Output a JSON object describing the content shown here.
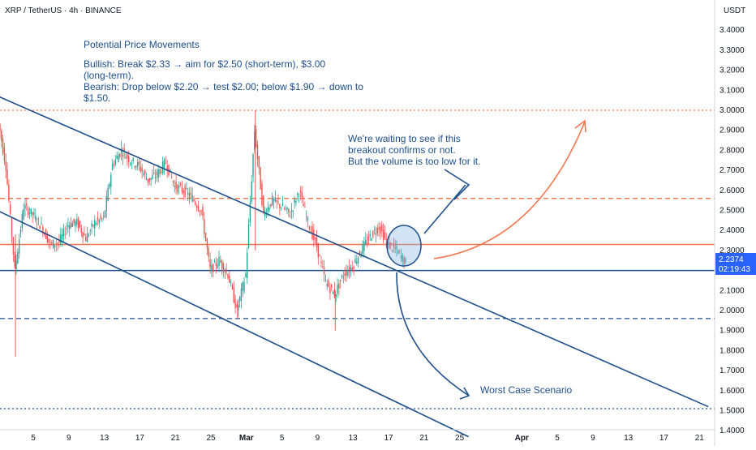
{
  "header": {
    "symbol": "XRP / TetherUS · 4h · BINANCE",
    "quote": "USDT"
  },
  "price_badge": {
    "price": "2.2374",
    "countdown": "02:19:43"
  },
  "notes": {
    "title": "Potential Price Movements",
    "bullish_1": "Bullish: Break $2.33 → aim for $2.50 (short-term), $3.00",
    "bullish_2": "(long-term).",
    "bearish_1": "Bearish: Drop below $2.20 → test $2.00; below $1.90 → down to",
    "bearish_2": "$1.50.",
    "waiting_1": "We're waiting to see if this",
    "waiting_2": "breakout confirms or not.",
    "waiting_3": "But the volume is too low for it.",
    "worst_case": "Worst Case Scenario"
  },
  "colors": {
    "up": "#26a69a",
    "down": "#ef5350",
    "line_blue": "#1e4f8c",
    "orange": "#f4764e",
    "badge": "#2962ff",
    "grid": "#e0e3eb"
  },
  "chart_data": {
    "type": "candlestick",
    "title": "XRP / TetherUS · 4h · BINANCE",
    "ylabel": "USDT",
    "ylim": [
      1.37,
      3.56
    ],
    "y_ticks": [
      "3.4000",
      "3.3000",
      "3.2000",
      "3.1000",
      "3.0000",
      "2.9000",
      "2.8000",
      "2.7000",
      "2.6000",
      "2.5000",
      "2.4000",
      "2.3000",
      "2.2000",
      "2.1000",
      "2.0000",
      "1.9000",
      "1.8000",
      "1.7000",
      "1.6000",
      "1.5000",
      "1.4000"
    ],
    "x_ticks": [
      "5",
      "9",
      "13",
      "17",
      "21",
      "25",
      "Mar",
      "5",
      "9",
      "13",
      "17",
      "21",
      "25",
      "Apr",
      "5",
      "9",
      "13",
      "17",
      "21"
    ],
    "current_price": 2.2374,
    "horizontal_levels": [
      {
        "name": "resistance-3.00",
        "price": 3.0,
        "style": "dotted",
        "color": "orange"
      },
      {
        "name": "resistance-2.56",
        "price": 2.56,
        "style": "dashed",
        "color": "orange"
      },
      {
        "name": "resistance-2.33",
        "price": 2.33,
        "style": "solid",
        "color": "orange"
      },
      {
        "name": "support-2.20",
        "price": 2.2,
        "style": "solid",
        "color": "blue"
      },
      {
        "name": "support-1.96",
        "price": 1.96,
        "style": "dashed",
        "color": "blue"
      },
      {
        "name": "support-1.51",
        "price": 1.51,
        "style": "dotted",
        "color": "blue"
      }
    ],
    "price_path": [
      {
        "date": "Feb 1",
        "price": 2.98
      },
      {
        "date": "Feb 2",
        "price": 2.72
      },
      {
        "date": "Feb 3",
        "price": 2.2
      },
      {
        "date": "Feb 4",
        "price": 2.52
      },
      {
        "date": "Feb 5",
        "price": 2.48
      },
      {
        "date": "Feb 6",
        "price": 2.42
      },
      {
        "date": "Feb 7",
        "price": 2.33
      },
      {
        "date": "Feb 8",
        "price": 2.34
      },
      {
        "date": "Feb 9",
        "price": 2.43
      },
      {
        "date": "Feb 10",
        "price": 2.44
      },
      {
        "date": "Feb 11",
        "price": 2.36
      },
      {
        "date": "Feb 12",
        "price": 2.44
      },
      {
        "date": "Feb 13",
        "price": 2.46
      },
      {
        "date": "Feb 14",
        "price": 2.73
      },
      {
        "date": "Feb 15",
        "price": 2.8
      },
      {
        "date": "Feb 16",
        "price": 2.75
      },
      {
        "date": "Feb 17",
        "price": 2.72
      },
      {
        "date": "Feb 18",
        "price": 2.65
      },
      {
        "date": "Feb 19",
        "price": 2.68
      },
      {
        "date": "Feb 20",
        "price": 2.74
      },
      {
        "date": "Feb 21",
        "price": 2.62
      },
      {
        "date": "Feb 22",
        "price": 2.6
      },
      {
        "date": "Feb 23",
        "price": 2.56
      },
      {
        "date": "Feb 24",
        "price": 2.5
      },
      {
        "date": "Feb 25",
        "price": 2.2
      },
      {
        "date": "Feb 26",
        "price": 2.25
      },
      {
        "date": "Feb 27",
        "price": 2.18
      },
      {
        "date": "Feb 28",
        "price": 2.0
      },
      {
        "date": "Mar 1",
        "price": 2.18
      },
      {
        "date": "Mar 2",
        "price": 2.9
      },
      {
        "date": "Mar 3",
        "price": 2.48
      },
      {
        "date": "Mar 4",
        "price": 2.55
      },
      {
        "date": "Mar 5",
        "price": 2.52
      },
      {
        "date": "Mar 6",
        "price": 2.48
      },
      {
        "date": "Mar 7",
        "price": 2.6
      },
      {
        "date": "Mar 8",
        "price": 2.44
      },
      {
        "date": "Mar 9",
        "price": 2.32
      },
      {
        "date": "Mar 10",
        "price": 2.14
      },
      {
        "date": "Mar 11",
        "price": 2.08
      },
      {
        "date": "Mar 12",
        "price": 2.18
      },
      {
        "date": "Mar 13",
        "price": 2.22
      },
      {
        "date": "Mar 14",
        "price": 2.3
      },
      {
        "date": "Mar 15",
        "price": 2.37
      },
      {
        "date": "Mar 16",
        "price": 2.42
      },
      {
        "date": "Mar 17",
        "price": 2.33
      },
      {
        "date": "Mar 18",
        "price": 2.3
      },
      {
        "date": "Mar 19",
        "price": 2.24
      }
    ],
    "channel": [
      {
        "name": "channel-upper",
        "from": {
          "date": "Jan 31",
          "price": 3.09
        },
        "to": {
          "date": "Apr 22",
          "price": 1.52
        }
      },
      {
        "name": "channel-lower",
        "from": {
          "date": "Jan 31",
          "price": 2.52
        },
        "to": {
          "date": "Mar 26",
          "price": 1.37
        }
      }
    ]
  }
}
